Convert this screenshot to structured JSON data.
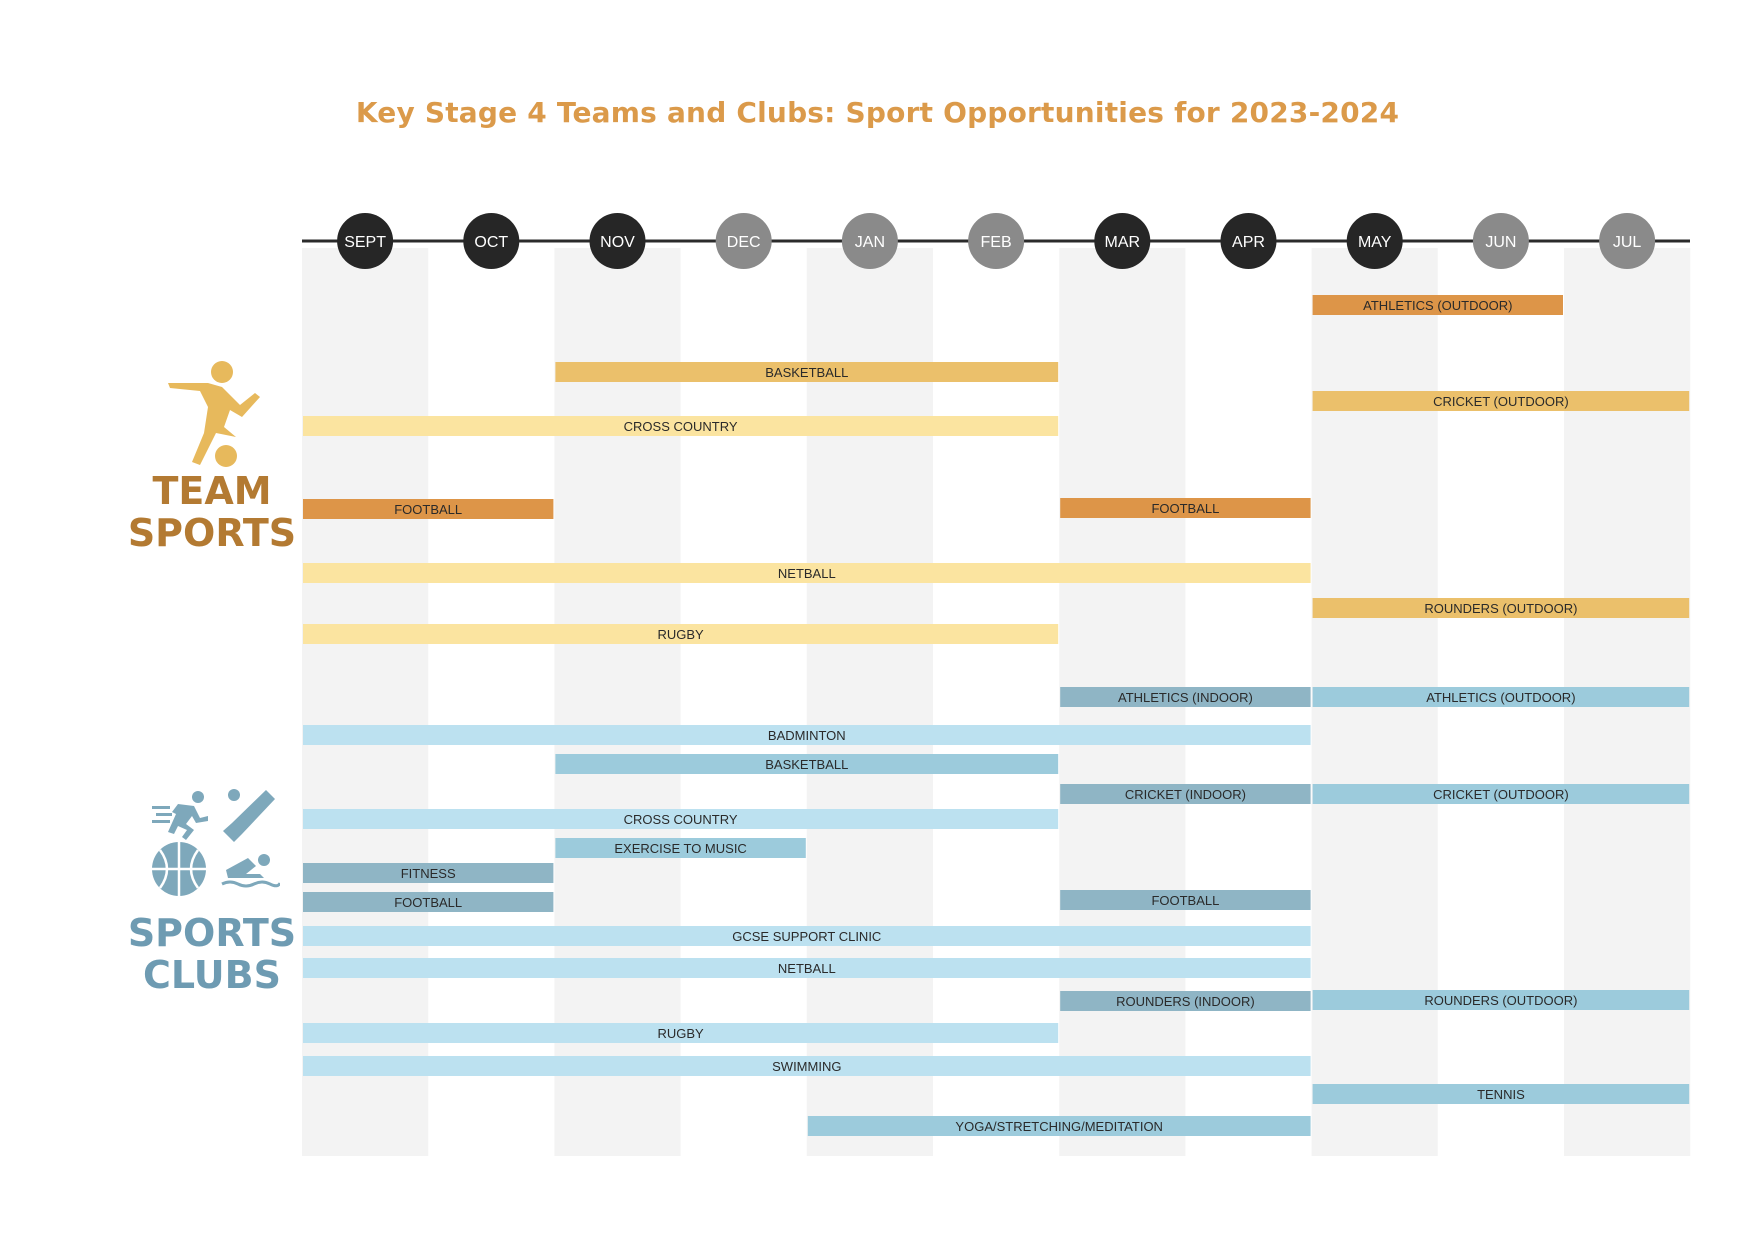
{
  "title": "Key Stage 4 Teams and Clubs: Sport Opportunities for 2023-2024",
  "sections": {
    "team": [
      "TEAM",
      "SPORTS"
    ],
    "clubs": [
      "SPORTS",
      "CLUBS"
    ]
  },
  "chart_data": {
    "type": "gantt",
    "title": "Key Stage 4 Teams and Clubs: Sport Opportunities for 2023-2024",
    "months": [
      "SEPT",
      "OCT",
      "NOV",
      "DEC",
      "JAN",
      "FEB",
      "MAR",
      "APR",
      "MAY",
      "JUN",
      "JUL"
    ],
    "month_marker_colors": [
      "#262626",
      "#262626",
      "#262626",
      "#8a8a8a",
      "#8a8a8a",
      "#8a8a8a",
      "#262626",
      "#262626",
      "#262626",
      "#8a8a8a",
      "#8a8a8a"
    ],
    "colors": {
      "team_dark": "#dd9548",
      "team_mid": "#ebc06b",
      "team_light": "#fbe4a0",
      "club_dark": "#8fb5c5",
      "club_mid": "#9ccbdc",
      "club_light": "#bce1f0",
      "title": "#db9a4a"
    },
    "team_sports": [
      {
        "label": "ATHLETICS (OUTDOOR)",
        "start": "MAY",
        "end": "JUN",
        "shade": "team_dark"
      },
      {
        "label": "BASKETBALL",
        "start": "NOV",
        "end": "FEB",
        "shade": "team_mid"
      },
      {
        "label": "CRICKET (OUTDOOR)",
        "start": "MAY",
        "end": "JUL",
        "shade": "team_mid"
      },
      {
        "label": "CROSS COUNTRY",
        "start": "SEPT",
        "end": "FEB",
        "shade": "team_light"
      },
      {
        "label": "FOOTBALL",
        "start": "SEPT",
        "end": "OCT",
        "shade": "team_dark"
      },
      {
        "label": "FOOTBALL",
        "start": "MAR",
        "end": "APR",
        "shade": "team_dark"
      },
      {
        "label": "NETBALL",
        "start": "SEPT",
        "end": "APR",
        "shade": "team_light"
      },
      {
        "label": "ROUNDERS (OUTDOOR)",
        "start": "MAY",
        "end": "JUL",
        "shade": "team_mid"
      },
      {
        "label": "RUGBY",
        "start": "SEPT",
        "end": "FEB",
        "shade": "team_light"
      }
    ],
    "sports_clubs": [
      {
        "label": "ATHLETICS (INDOOR)",
        "start": "MAR",
        "end": "APR",
        "shade": "club_dark"
      },
      {
        "label": "ATHLETICS (OUTDOOR)",
        "start": "MAY",
        "end": "JUL",
        "shade": "club_mid"
      },
      {
        "label": "BADMINTON",
        "start": "SEPT",
        "end": "APR",
        "shade": "club_light"
      },
      {
        "label": "BASKETBALL",
        "start": "NOV",
        "end": "FEB",
        "shade": "club_mid"
      },
      {
        "label": "CRICKET (INDOOR)",
        "start": "MAR",
        "end": "APR",
        "shade": "club_dark"
      },
      {
        "label": "CRICKET (OUTDOOR)",
        "start": "MAY",
        "end": "JUL",
        "shade": "club_mid"
      },
      {
        "label": "CROSS COUNTRY",
        "start": "SEPT",
        "end": "FEB",
        "shade": "club_light"
      },
      {
        "label": "EXERCISE TO MUSIC",
        "start": "NOV",
        "end": "DEC",
        "shade": "club_mid"
      },
      {
        "label": "FITNESS",
        "start": "SEPT",
        "end": "OCT",
        "shade": "club_dark"
      },
      {
        "label": "FOOTBALL",
        "start": "SEPT",
        "end": "OCT",
        "shade": "club_dark"
      },
      {
        "label": "FOOTBALL",
        "start": "MAR",
        "end": "APR",
        "shade": "club_dark"
      },
      {
        "label": "GCSE SUPPORT CLINIC",
        "start": "SEPT",
        "end": "APR",
        "shade": "club_light"
      },
      {
        "label": "NETBALL",
        "start": "SEPT",
        "end": "APR",
        "shade": "club_light"
      },
      {
        "label": "ROUNDERS (INDOOR)",
        "start": "MAR",
        "end": "APR",
        "shade": "club_dark"
      },
      {
        "label": "ROUNDERS (OUTDOOR)",
        "start": "MAY",
        "end": "JUL",
        "shade": "club_mid"
      },
      {
        "label": "RUGBY",
        "start": "SEPT",
        "end": "FEB",
        "shade": "club_light"
      },
      {
        "label": "SWIMMING",
        "start": "SEPT",
        "end": "APR",
        "shade": "club_light"
      },
      {
        "label": "TENNIS",
        "start": "MAY",
        "end": "JUL",
        "shade": "club_mid"
      },
      {
        "label": "YOGA/STRETCHING/MEDITATION",
        "start": "JAN",
        "end": "APR",
        "shade": "club_mid"
      }
    ]
  }
}
